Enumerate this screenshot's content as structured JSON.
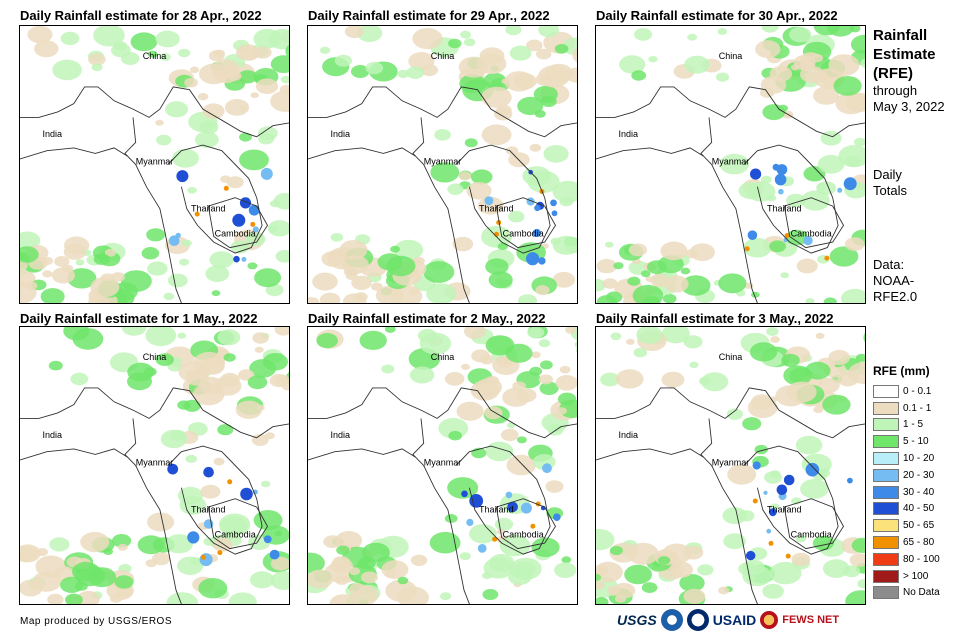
{
  "panels": [
    {
      "title": "Daily Rainfall estimate for 28 Apr., 2022"
    },
    {
      "title": "Daily Rainfall estimate for 29 Apr., 2022"
    },
    {
      "title": "Daily Rainfall estimate for 30 Apr., 2022"
    },
    {
      "title": "Daily Rainfall estimate for 1 May., 2022"
    },
    {
      "title": "Daily Rainfall estimate for 2 May., 2022"
    },
    {
      "title": "Daily Rainfall estimate for 3 May., 2022"
    }
  ],
  "map_labels": {
    "china": "China",
    "india": "India",
    "myanmar": "Myanmar",
    "thailand": "Thailand",
    "cambodia": "Cambodia"
  },
  "sidebar": {
    "title_line1": "Rainfall",
    "title_line2": "Estimate",
    "title_line3": "(RFE)",
    "through": "through",
    "date": "May 3, 2022",
    "totals_line1": "Daily",
    "totals_line2": "Totals",
    "data_line1": "Data:",
    "data_line2": "NOAA-",
    "data_line3": "RFE2.0"
  },
  "legend": {
    "title": "RFE (mm)",
    "items": [
      {
        "label": "0 - 0.1",
        "color": "#ffffff"
      },
      {
        "label": "0.1 - 1",
        "color": "#ecdcc0"
      },
      {
        "label": "1 - 5",
        "color": "#bff5b8"
      },
      {
        "label": "5 - 10",
        "color": "#6fe56a"
      },
      {
        "label": "10 - 20",
        "color": "#b7eef7"
      },
      {
        "label": "20 - 30",
        "color": "#74bcf1"
      },
      {
        "label": "30 - 40",
        "color": "#3d8ae8"
      },
      {
        "label": "40 - 50",
        "color": "#1f4fd4"
      },
      {
        "label": "50 - 65",
        "color": "#fbe27a"
      },
      {
        "label": "65 - 80",
        "color": "#f29100"
      },
      {
        "label": "80 - 100",
        "color": "#f03c14"
      },
      {
        "label": "> 100",
        "color": "#a11a1a"
      },
      {
        "label": "No Data",
        "color": "#8c8c8c"
      }
    ]
  },
  "credit": "Map produced by USGS/EROS",
  "logos": {
    "usgs": "USGS",
    "usaid": "USAID",
    "fews": "FEWS NET"
  }
}
